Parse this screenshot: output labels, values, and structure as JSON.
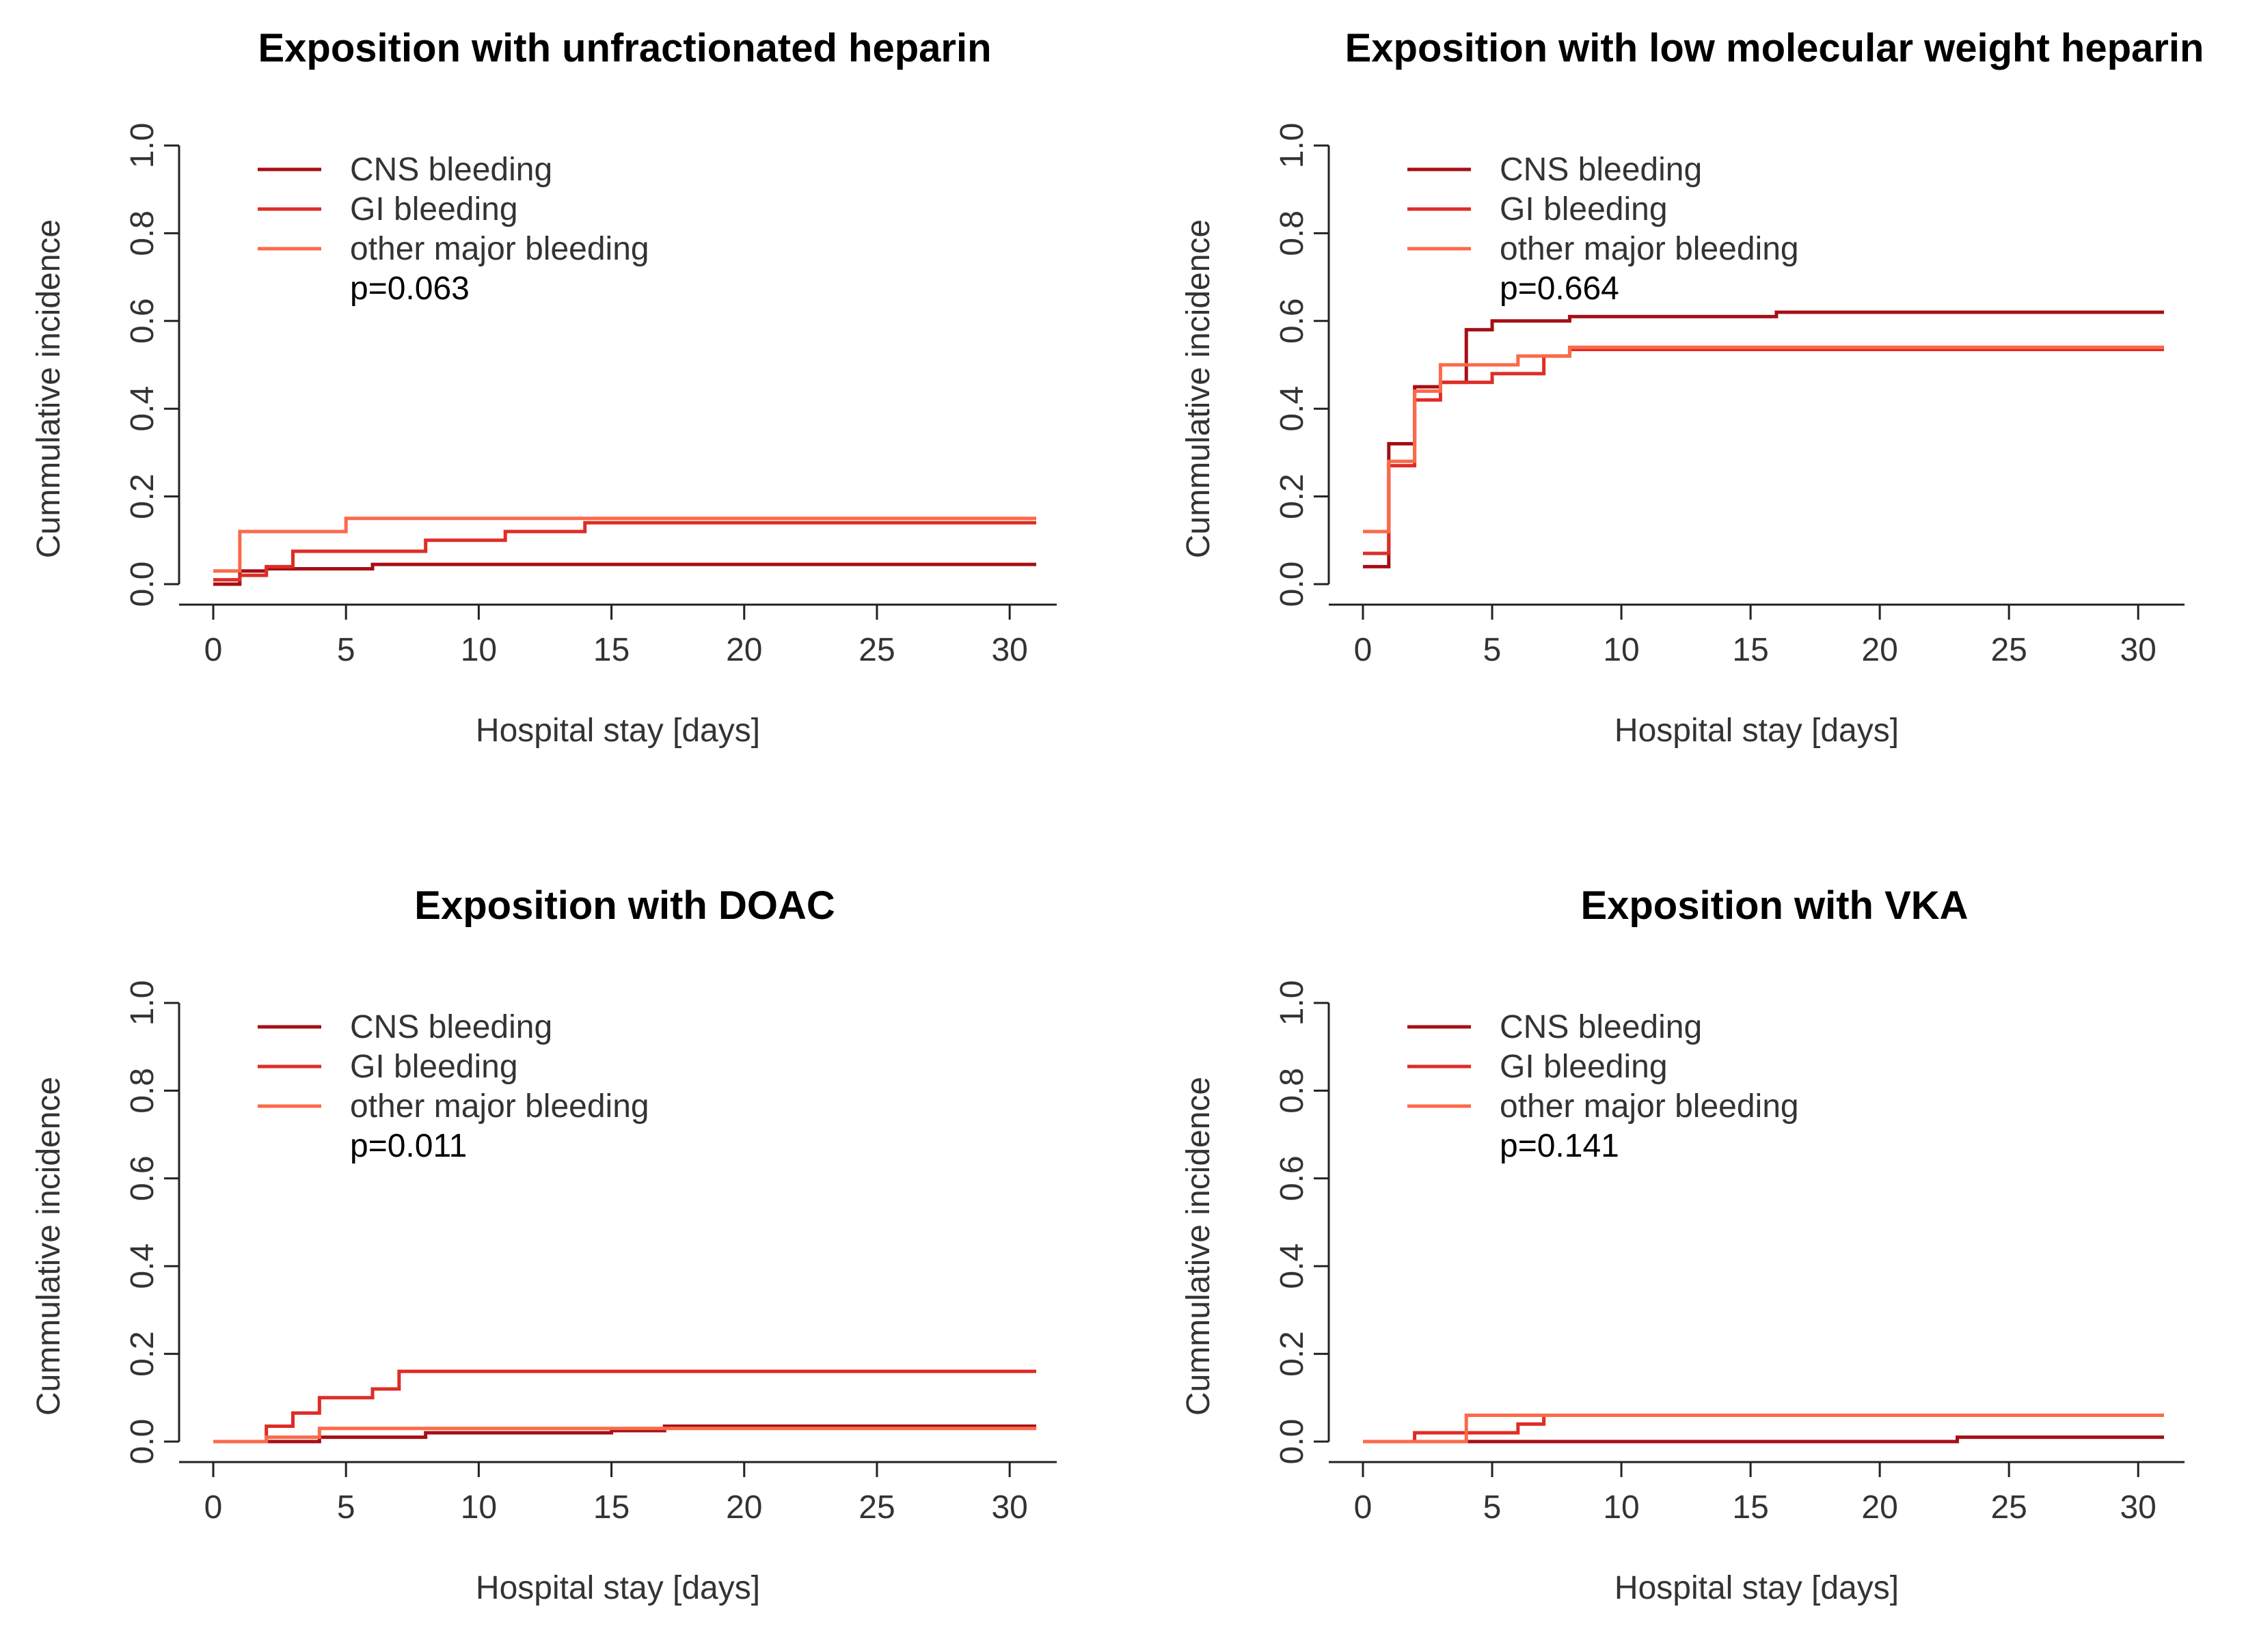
{
  "chart_data": [
    {
      "type": "line",
      "step": true,
      "title": "Exposition with unfractionated heparin",
      "xlabel": "Hospital stay [days]",
      "ylabel": "Cummulative incidence",
      "xlim": [
        0,
        31
      ],
      "ylim": [
        0,
        1
      ],
      "xticks": [
        "0",
        "5",
        "10",
        "15",
        "20",
        "25",
        "30"
      ],
      "yticks": [
        "0.0",
        "0.2",
        "0.4",
        "0.6",
        "0.8",
        "1.0"
      ],
      "pvalue": "p=0.063",
      "series": [
        {
          "name": "CNS bleeding",
          "color": "#a50f15",
          "x": [
            0,
            1,
            2,
            6,
            31
          ],
          "y": [
            0,
            0.03,
            0.035,
            0.045,
            0.045
          ]
        },
        {
          "name": "GI bleeding",
          "color": "#de2d26",
          "x": [
            0,
            1,
            2,
            3,
            8,
            11,
            14,
            31
          ],
          "y": [
            0.01,
            0.02,
            0.04,
            0.075,
            0.1,
            0.12,
            0.14,
            0.14
          ]
        },
        {
          "name": "other major bleeding",
          "color": "#fb6a4a",
          "x": [
            0,
            1,
            5,
            14,
            31
          ],
          "y": [
            0.03,
            0.12,
            0.15,
            0.15,
            0.15
          ]
        }
      ]
    },
    {
      "type": "line",
      "step": true,
      "title": "Exposition with low molecular weight heparin",
      "xlabel": "Hospital stay [days]",
      "ylabel": "Cummulative incidence",
      "xlim": [
        0,
        31
      ],
      "ylim": [
        0,
        1
      ],
      "xticks": [
        "0",
        "5",
        "10",
        "15",
        "20",
        "25",
        "30"
      ],
      "yticks": [
        "0.0",
        "0.2",
        "0.4",
        "0.6",
        "0.8",
        "1.0"
      ],
      "pvalue": "p=0.664",
      "series": [
        {
          "name": "CNS bleeding",
          "color": "#a50f15",
          "x": [
            0,
            1,
            2,
            3,
            4,
            5,
            8,
            16,
            31
          ],
          "y": [
            0.04,
            0.32,
            0.45,
            0.46,
            0.58,
            0.6,
            0.61,
            0.62,
            0.62
          ]
        },
        {
          "name": "GI bleeding",
          "color": "#de2d26",
          "x": [
            0,
            1,
            2,
            3,
            5,
            7,
            8,
            31
          ],
          "y": [
            0.07,
            0.27,
            0.42,
            0.46,
            0.48,
            0.52,
            0.535,
            0.535
          ]
        },
        {
          "name": "other major bleeding",
          "color": "#fb6a4a",
          "x": [
            0,
            1,
            2,
            3,
            6,
            8,
            31
          ],
          "y": [
            0.12,
            0.28,
            0.44,
            0.5,
            0.52,
            0.54,
            0.54
          ]
        }
      ]
    },
    {
      "type": "line",
      "step": true,
      "title": "Exposition with DOAC",
      "xlabel": "Hospital stay [days]",
      "ylabel": "Cummulative incidence",
      "xlim": [
        0,
        31
      ],
      "ylim": [
        0,
        1
      ],
      "xticks": [
        "0",
        "5",
        "10",
        "15",
        "20",
        "25",
        "30"
      ],
      "yticks": [
        "0.0",
        "0.2",
        "0.4",
        "0.6",
        "0.8",
        "1.0"
      ],
      "pvalue": "p=0.011",
      "series": [
        {
          "name": "CNS bleeding",
          "color": "#a50f15",
          "x": [
            0,
            4,
            8,
            15,
            17,
            31
          ],
          "y": [
            0,
            0.01,
            0.02,
            0.025,
            0.035,
            0.035
          ]
        },
        {
          "name": "GI bleeding",
          "color": "#de2d26",
          "x": [
            0,
            2,
            3,
            4,
            6,
            7,
            31
          ],
          "y": [
            0,
            0.035,
            0.065,
            0.1,
            0.12,
            0.16,
            0.16
          ]
        },
        {
          "name": "other major bleeding",
          "color": "#fb6a4a",
          "x": [
            0,
            2,
            4,
            17,
            31
          ],
          "y": [
            0,
            0.01,
            0.03,
            0.03,
            0.03
          ]
        }
      ]
    },
    {
      "type": "line",
      "step": true,
      "title": "Exposition with VKA",
      "xlabel": "Hospital stay [days]",
      "ylabel": "Cummulative incidence",
      "xlim": [
        0,
        31
      ],
      "ylim": [
        0,
        1
      ],
      "xticks": [
        "0",
        "5",
        "10",
        "15",
        "20",
        "25",
        "30"
      ],
      "yticks": [
        "0.0",
        "0.2",
        "0.4",
        "0.6",
        "0.8",
        "1.0"
      ],
      "pvalue": "p=0.141",
      "series": [
        {
          "name": "CNS bleeding",
          "color": "#a50f15",
          "x": [
            0,
            23,
            31
          ],
          "y": [
            0,
            0.01,
            0.01
          ]
        },
        {
          "name": "GI bleeding",
          "color": "#de2d26",
          "x": [
            0,
            2,
            6,
            7,
            31
          ],
          "y": [
            0,
            0.02,
            0.04,
            0.06,
            0.06
          ]
        },
        {
          "name": "other major bleeding",
          "color": "#fb6a4a",
          "x": [
            0,
            4,
            31
          ],
          "y": [
            0,
            0.06,
            0.06
          ]
        }
      ]
    }
  ]
}
